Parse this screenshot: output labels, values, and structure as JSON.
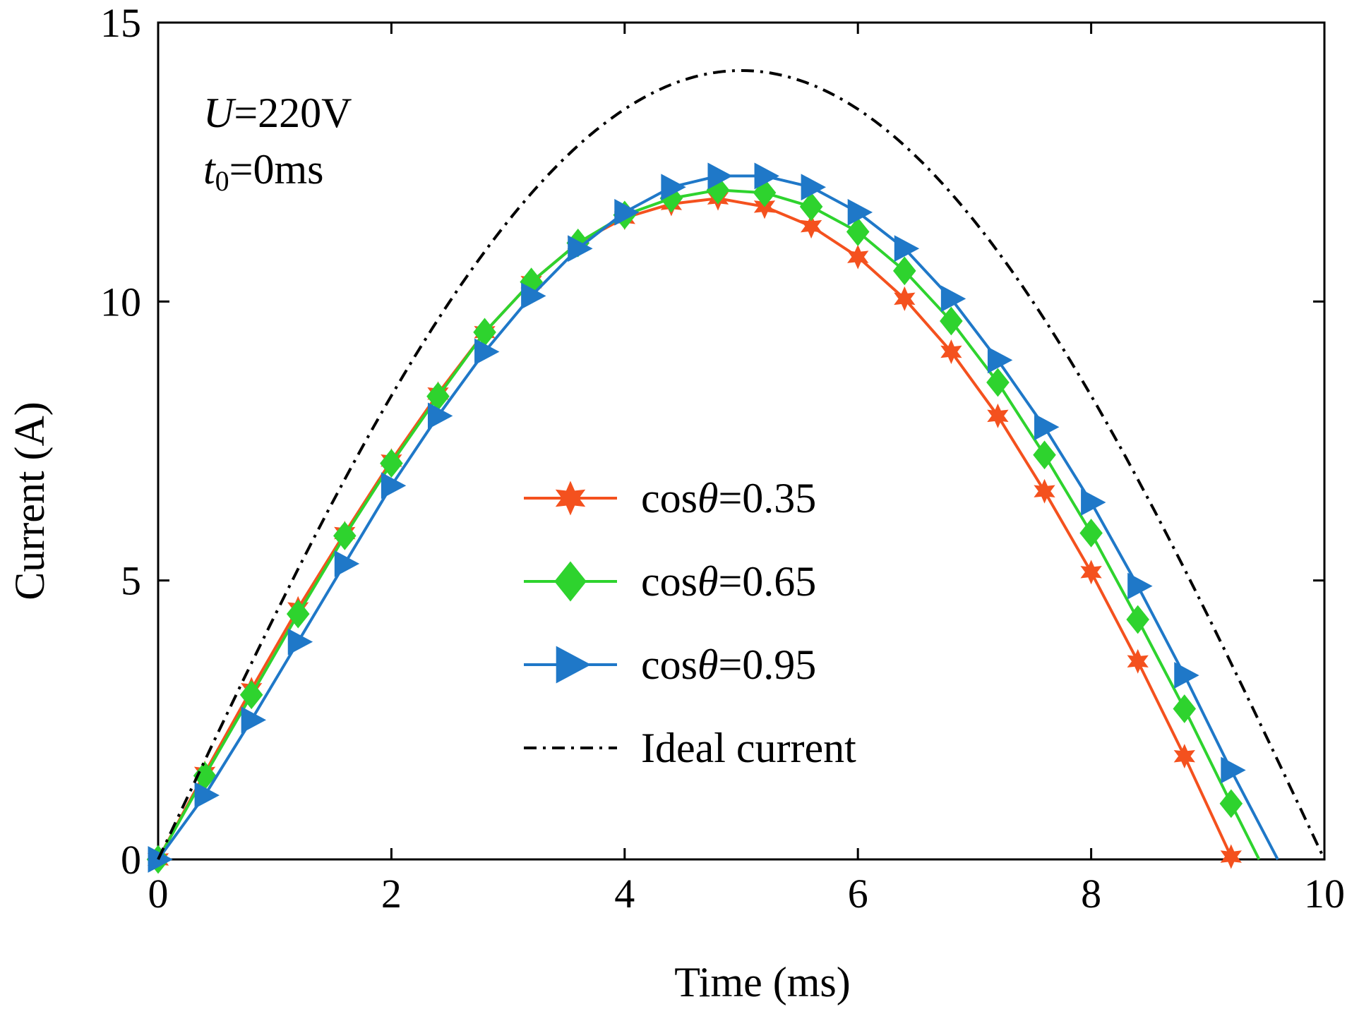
{
  "chart_data": {
    "type": "line",
    "title": "",
    "xlabel": "Time (ms)",
    "ylabel": "Current (A)",
    "xlim": [
      0,
      10
    ],
    "ylim": [
      0,
      15
    ],
    "xticks": [
      "0",
      "2",
      "4",
      "6",
      "8",
      "10"
    ],
    "yticks": [
      "0",
      "5",
      "10",
      "15"
    ],
    "grid": false,
    "legend_position": "center",
    "annotations": [
      {
        "var": "U",
        "sub": "",
        "rest": "=220V"
      },
      {
        "var": "t",
        "sub": "0",
        "rest": "=0ms"
      }
    ],
    "series": [
      {
        "name": "cosθ=0.35",
        "label_prefix": "cos",
        "label_var": "θ",
        "label_value": "=0.35",
        "color": "#f4511e",
        "marker": "star",
        "x": [
          0,
          0.4,
          0.8,
          1.2,
          1.6,
          2.0,
          2.4,
          2.8,
          3.2,
          3.6,
          4.0,
          4.4,
          4.8,
          5.2,
          5.6,
          6.0,
          6.4,
          6.8,
          7.2,
          7.6,
          8.0,
          8.4,
          8.8,
          9.2
        ],
        "y": [
          0,
          1.55,
          3.05,
          4.5,
          5.85,
          7.15,
          8.35,
          9.45,
          10.35,
          11.05,
          11.5,
          11.75,
          11.85,
          11.7,
          11.35,
          10.8,
          10.05,
          9.1,
          7.95,
          6.6,
          5.15,
          3.55,
          1.85,
          0.05
        ]
      },
      {
        "name": "cosθ=0.65",
        "label_prefix": "cos",
        "label_var": "θ",
        "label_value": "=0.65",
        "color": "#2ed32e",
        "marker": "diamond",
        "x": [
          0,
          0.4,
          0.8,
          1.2,
          1.6,
          2.0,
          2.4,
          2.8,
          3.2,
          3.6,
          4.0,
          4.4,
          4.8,
          5.2,
          5.6,
          6.0,
          6.4,
          6.8,
          7.2,
          7.6,
          8.0,
          8.4,
          8.8,
          9.2,
          9.44
        ],
        "y": [
          0,
          1.5,
          2.95,
          4.4,
          5.8,
          7.1,
          8.3,
          9.45,
          10.35,
          11.05,
          11.55,
          11.85,
          12.0,
          11.95,
          11.7,
          11.25,
          10.55,
          9.65,
          8.55,
          7.25,
          5.85,
          4.3,
          2.7,
          1.0,
          0.0
        ]
      },
      {
        "name": "cosθ=0.95",
        "label_prefix": "cos",
        "label_var": "θ",
        "label_value": "=0.95",
        "color": "#1f78c8",
        "marker": "triangle-right",
        "x": [
          0,
          0.4,
          0.8,
          1.2,
          1.6,
          2.0,
          2.4,
          2.8,
          3.2,
          3.6,
          4.0,
          4.4,
          4.8,
          5.2,
          5.6,
          6.0,
          6.4,
          6.8,
          7.2,
          7.6,
          8.0,
          8.4,
          8.8,
          9.2,
          9.6
        ],
        "y": [
          0,
          1.15,
          2.5,
          3.9,
          5.3,
          6.7,
          7.95,
          9.1,
          10.1,
          10.95,
          11.6,
          12.05,
          12.25,
          12.25,
          12.05,
          11.6,
          10.95,
          10.05,
          8.95,
          7.75,
          6.4,
          4.9,
          3.3,
          1.6,
          0.0
        ]
      },
      {
        "name": "Ideal current",
        "label_prefix": "Ideal current",
        "label_var": "",
        "label_value": "",
        "color": "#000000",
        "marker": "none",
        "line_style": "dash-dot",
        "function": "14.14*sin(pi*t/10)",
        "x": [
          0,
          0.5,
          1.0,
          1.5,
          2.0,
          2.5,
          3.0,
          3.5,
          4.0,
          4.5,
          5.0,
          5.5,
          6.0,
          6.5,
          7.0,
          7.5,
          8.0,
          8.5,
          9.0,
          9.5,
          10.0
        ],
        "y": [
          0,
          2.21,
          4.37,
          6.42,
          8.31,
          10.0,
          11.44,
          12.6,
          13.45,
          13.97,
          14.14,
          13.97,
          13.45,
          12.6,
          11.44,
          10.0,
          8.31,
          6.42,
          4.37,
          2.21,
          0
        ]
      }
    ]
  },
  "colors": {
    "axis": "#000000",
    "background": "#ffffff"
  }
}
